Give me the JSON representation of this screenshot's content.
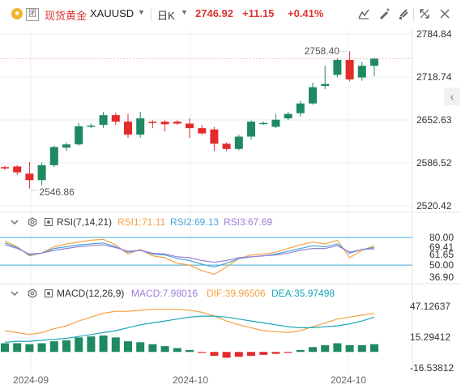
{
  "header": {
    "symbol_name": "现货黄金",
    "symbol_code": "XAUUSD",
    "period": "日K",
    "price": "2746.92",
    "change": "+11.15",
    "change_pct": "+0.41%",
    "badge_icon": "gold-coin-icon"
  },
  "colors": {
    "up": "#1f8a62",
    "down": "#e32b2b",
    "price_tag": "#d93434",
    "rsi1": "#f5a142",
    "rsi2": "#4aa5d9",
    "rsi3": "#9b7fd6",
    "macd": "#9b7fd6",
    "dif": "#f5a142",
    "dea": "#1aa6b8",
    "ob_line": "#3fa9d6"
  },
  "price_axis": [
    "2784.84",
    "2718.74",
    "2652.63",
    "2586.52",
    "2520.42"
  ],
  "annotations": {
    "high": "2758.40",
    "low": "2546.86"
  },
  "rsi": {
    "title": "RSI(7,14,21)",
    "rsi1": "RSI1:71.11",
    "rsi2": "RSI2:69.13",
    "rsi3": "RSI3:67.69",
    "axis": [
      "80.00",
      "69.41",
      "61.65",
      "50.00",
      "36.90"
    ]
  },
  "macd": {
    "title": "MACD(12,26,9)",
    "macd": "MACD:7.98016",
    "dif": "DIF:39.96506",
    "dea": "DEA:35.97498",
    "axis": [
      "47.12637",
      "15.29412",
      "-16.53812"
    ]
  },
  "time_axis": [
    "2024-09",
    "2024-10",
    "2024-10"
  ],
  "chart_data": {
    "type": "candlestick",
    "ylim": [
      2520.42,
      2784.84
    ],
    "candles": [
      {
        "o": 2580,
        "h": 2582,
        "l": 2576,
        "c": 2578
      },
      {
        "o": 2581,
        "h": 2583,
        "l": 2568,
        "c": 2572
      },
      {
        "o": 2570,
        "h": 2588,
        "l": 2546.86,
        "c": 2560
      },
      {
        "o": 2560,
        "h": 2587,
        "l": 2552,
        "c": 2583
      },
      {
        "o": 2583,
        "h": 2613,
        "l": 2580,
        "c": 2611
      },
      {
        "o": 2610,
        "h": 2618,
        "l": 2605,
        "c": 2615
      },
      {
        "o": 2615,
        "h": 2648,
        "l": 2613,
        "c": 2643
      },
      {
        "o": 2643,
        "h": 2647,
        "l": 2640,
        "c": 2644
      },
      {
        "o": 2645,
        "h": 2665,
        "l": 2640,
        "c": 2660
      },
      {
        "o": 2660,
        "h": 2664,
        "l": 2645,
        "c": 2650
      },
      {
        "o": 2650,
        "h": 2662,
        "l": 2625,
        "c": 2630
      },
      {
        "o": 2630,
        "h": 2665,
        "l": 2625,
        "c": 2655
      },
      {
        "o": 2650,
        "h": 2652,
        "l": 2640,
        "c": 2648
      },
      {
        "o": 2650,
        "h": 2652,
        "l": 2635,
        "c": 2646
      },
      {
        "o": 2650,
        "h": 2652,
        "l": 2645,
        "c": 2647
      },
      {
        "o": 2647,
        "h": 2655,
        "l": 2625,
        "c": 2640
      },
      {
        "o": 2640,
        "h": 2645,
        "l": 2630,
        "c": 2632
      },
      {
        "o": 2638,
        "h": 2642,
        "l": 2605,
        "c": 2616
      },
      {
        "o": 2616,
        "h": 2618,
        "l": 2605,
        "c": 2608
      },
      {
        "o": 2608,
        "h": 2630,
        "l": 2606,
        "c": 2627
      },
      {
        "o": 2627,
        "h": 2652,
        "l": 2622,
        "c": 2650
      },
      {
        "o": 2647,
        "h": 2650,
        "l": 2645,
        "c": 2648
      },
      {
        "o": 2642,
        "h": 2662,
        "l": 2640,
        "c": 2653
      },
      {
        "o": 2655,
        "h": 2665,
        "l": 2652,
        "c": 2662
      },
      {
        "o": 2663,
        "h": 2682,
        "l": 2658,
        "c": 2678
      },
      {
        "o": 2678,
        "h": 2710,
        "l": 2676,
        "c": 2703
      },
      {
        "o": 2705,
        "h": 2736,
        "l": 2700,
        "c": 2708
      },
      {
        "o": 2722,
        "h": 2748,
        "l": 2718,
        "c": 2745
      },
      {
        "o": 2745,
        "h": 2758.4,
        "l": 2712,
        "c": 2715
      },
      {
        "o": 2718,
        "h": 2742,
        "l": 2713,
        "c": 2736
      },
      {
        "o": 2736,
        "h": 2748,
        "l": 2720,
        "c": 2746.92
      }
    ],
    "rsi_ylim": [
      36.9,
      80
    ],
    "rsi1": [
      76,
      70,
      60,
      63,
      70,
      73,
      75,
      77,
      78,
      72,
      62,
      67,
      60,
      58,
      52,
      50,
      44,
      40,
      48,
      57,
      61,
      62,
      64,
      68,
      72,
      75,
      73,
      77,
      58,
      66,
      71.11
    ],
    "rsi2": [
      74,
      69,
      61,
      63,
      68,
      70,
      72,
      73,
      74,
      70,
      64,
      66,
      62,
      61,
      57,
      55,
      51,
      48,
      52,
      57,
      59,
      60,
      62,
      65,
      68,
      71,
      70,
      73,
      63,
      67,
      69.13
    ],
    "rsi3": [
      72,
      68,
      62,
      63,
      66,
      68,
      70,
      71,
      72,
      69,
      65,
      66,
      63,
      62,
      59,
      58,
      55,
      53,
      55,
      58,
      59,
      60,
      61,
      63,
      66,
      68,
      68,
      71,
      64,
      67,
      67.69
    ],
    "macd_ylim": [
      -16.53812,
      47.12637
    ],
    "macd_hist": [
      9,
      9,
      8,
      9,
      11,
      12,
      15,
      16,
      17,
      15,
      11,
      10,
      8,
      6,
      4,
      2,
      -1,
      -4,
      -6,
      -5,
      -4,
      -3,
      -2,
      -1,
      2,
      5,
      7,
      9,
      7,
      7,
      7.98
    ],
    "dif": [
      22,
      20,
      18,
      20,
      24,
      27,
      32,
      36,
      40,
      42,
      42,
      43,
      44,
      44,
      44,
      43,
      41,
      37,
      32,
      28,
      25,
      22,
      21,
      20,
      22,
      26,
      30,
      34,
      36,
      38,
      39.97
    ],
    "dea": [
      10,
      11,
      11,
      12,
      13,
      14,
      16,
      18,
      20,
      22,
      25,
      28,
      30,
      32,
      34,
      36,
      37,
      37,
      36,
      34,
      32,
      30,
      28,
      26,
      25,
      25,
      26,
      27,
      29,
      32,
      35.97
    ]
  }
}
